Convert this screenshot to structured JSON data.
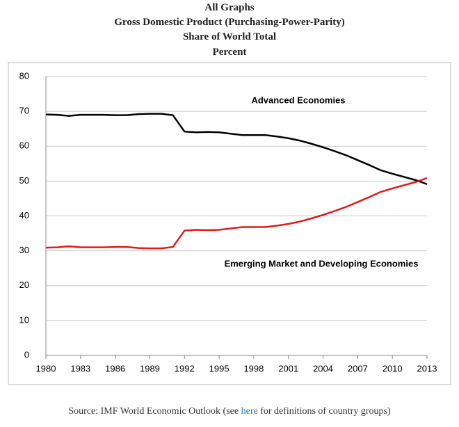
{
  "chart_data": {
    "type": "line",
    "title": [
      "All Graphs",
      "Gross Domestic Product (Purchasing-Power-Parity)",
      "Share of World Total",
      "Percent"
    ],
    "x": [
      1980,
      1981,
      1982,
      1983,
      1984,
      1985,
      1986,
      1987,
      1988,
      1989,
      1990,
      1991,
      1992,
      1993,
      1994,
      1995,
      1996,
      1997,
      1998,
      1999,
      2000,
      2001,
      2002,
      2003,
      2004,
      2005,
      2006,
      2007,
      2008,
      2009,
      2010,
      2011,
      2012,
      2013
    ],
    "series": [
      {
        "name": "Advanced Economies",
        "color": "#000000",
        "values": [
          69.1,
          69.0,
          68.7,
          69.0,
          69.0,
          69.0,
          68.9,
          68.9,
          69.2,
          69.3,
          69.3,
          68.9,
          64.2,
          64.0,
          64.1,
          64.0,
          63.6,
          63.2,
          63.2,
          63.2,
          62.8,
          62.3,
          61.6,
          60.7,
          59.7,
          58.6,
          57.4,
          56.0,
          54.6,
          53.1,
          52.1,
          51.2,
          50.3,
          49.1
        ]
      },
      {
        "name": "Emerging Market and Developing Economies",
        "color": "#e01b1b",
        "values": [
          30.9,
          31.0,
          31.3,
          31.0,
          31.0,
          31.0,
          31.1,
          31.1,
          30.8,
          30.7,
          30.7,
          31.1,
          35.8,
          36.0,
          35.9,
          36.0,
          36.4,
          36.8,
          36.8,
          36.8,
          37.2,
          37.7,
          38.4,
          39.3,
          40.3,
          41.4,
          42.6,
          44.0,
          45.4,
          46.9,
          47.9,
          48.8,
          49.7,
          50.9
        ]
      }
    ],
    "xlim": [
      1980,
      2013
    ],
    "xticks": [
      1980,
      1983,
      1986,
      1989,
      1992,
      1995,
      1998,
      2001,
      2004,
      2007,
      2010,
      2013
    ],
    "ylim": [
      0,
      80
    ],
    "yticks": [
      0,
      10,
      20,
      30,
      40,
      50,
      60,
      70,
      80
    ],
    "grid": true,
    "source": [
      "Source: IMF World Economic Outlook (see ",
      "here",
      " for definitions of country groups)"
    ]
  }
}
